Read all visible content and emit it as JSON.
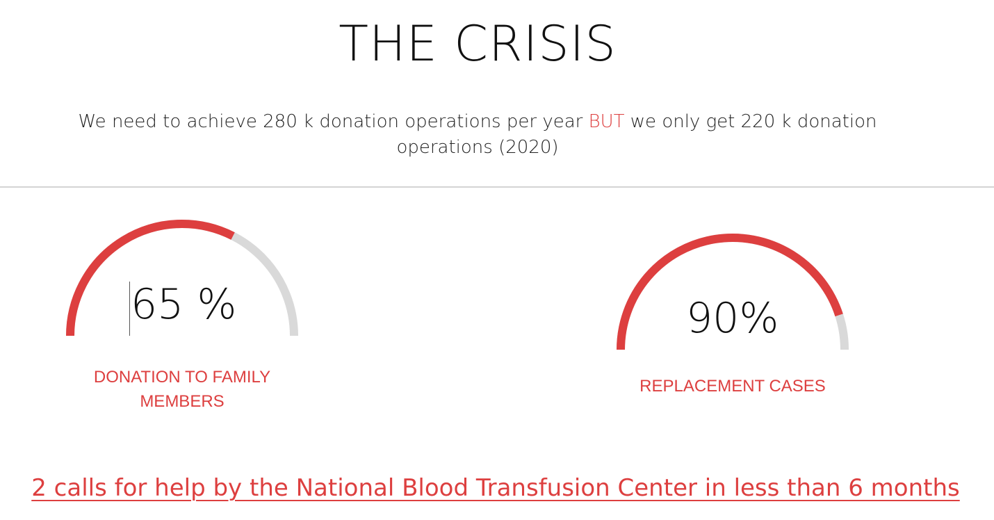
{
  "header": {
    "title": "THE CRISIS"
  },
  "intro": {
    "text_before": "We need to achieve 280 k donation operations per year ",
    "highlight": "BUT",
    "text_after": " we only get 220 k donation operations (2020)"
  },
  "gauges": [
    {
      "value_label": "65 %",
      "percent": 65,
      "label": "DONATION TO FAMILY MEMBERS"
    },
    {
      "value_label": "90%",
      "percent": 90,
      "label": "REPLACEMENT CASES"
    }
  ],
  "footer": {
    "link_text": "2 calls for help by the National Blood Transfusion Center in less than 6 months"
  },
  "colors": {
    "accent": "#dd3f3f",
    "track": "#d9d9d9",
    "text": "#111111"
  }
}
